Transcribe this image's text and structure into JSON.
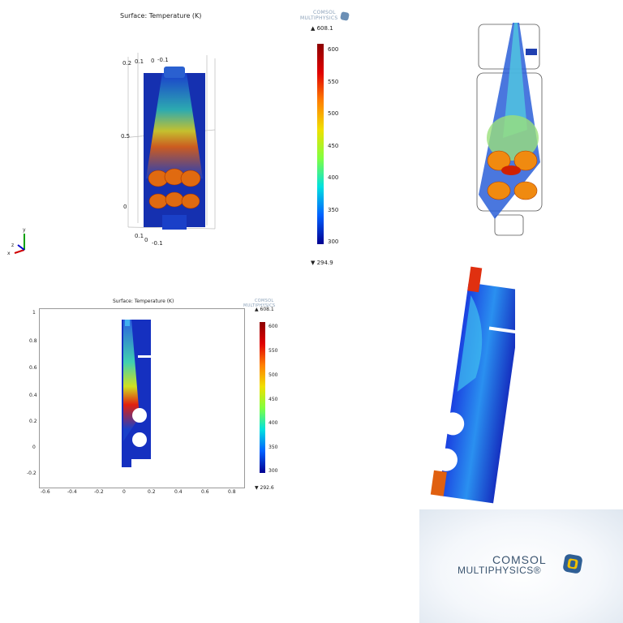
{
  "panel3d": {
    "title": "Surface: Temperature (K)",
    "colorbar": {
      "max_label": "▲ 608.1",
      "min_label": "▼ 294.9",
      "ticks": [
        "600",
        "550",
        "500",
        "450",
        "400",
        "350",
        "300"
      ]
    },
    "axis_ticks": [
      "0.2",
      "0.1",
      "0",
      "-0.1",
      "0.5",
      "0",
      "0.1",
      "0",
      "-0.1"
    ],
    "triad": {
      "y": "y",
      "z": "z",
      "x": "x"
    }
  },
  "panel2d": {
    "title": "Surface: Temperature (K)",
    "colorbar": {
      "max_label": "▲ 608.1",
      "min_label": "▼ 292.6",
      "ticks": [
        "600",
        "550",
        "500",
        "450",
        "400",
        "350",
        "300"
      ]
    },
    "y_ticks": [
      "1",
      "0.8",
      "0.6",
      "0.4",
      "0.2",
      "0",
      "-0.2"
    ],
    "x_ticks": [
      "-0.6",
      "-0.4",
      "-0.2",
      "0",
      "0.2",
      "0.4",
      "0.6",
      "0.8"
    ]
  },
  "brand": {
    "small_line1": "COMSOL",
    "small_line2": "MULTIPHYSICS",
    "big_line1": "COMSOL",
    "big_line2": "MULTIPHYSICS®"
  },
  "colors": {
    "hot": "#a00000",
    "mid": "#f0c000",
    "cool": "#00a0c0",
    "cold": "#00008c"
  }
}
